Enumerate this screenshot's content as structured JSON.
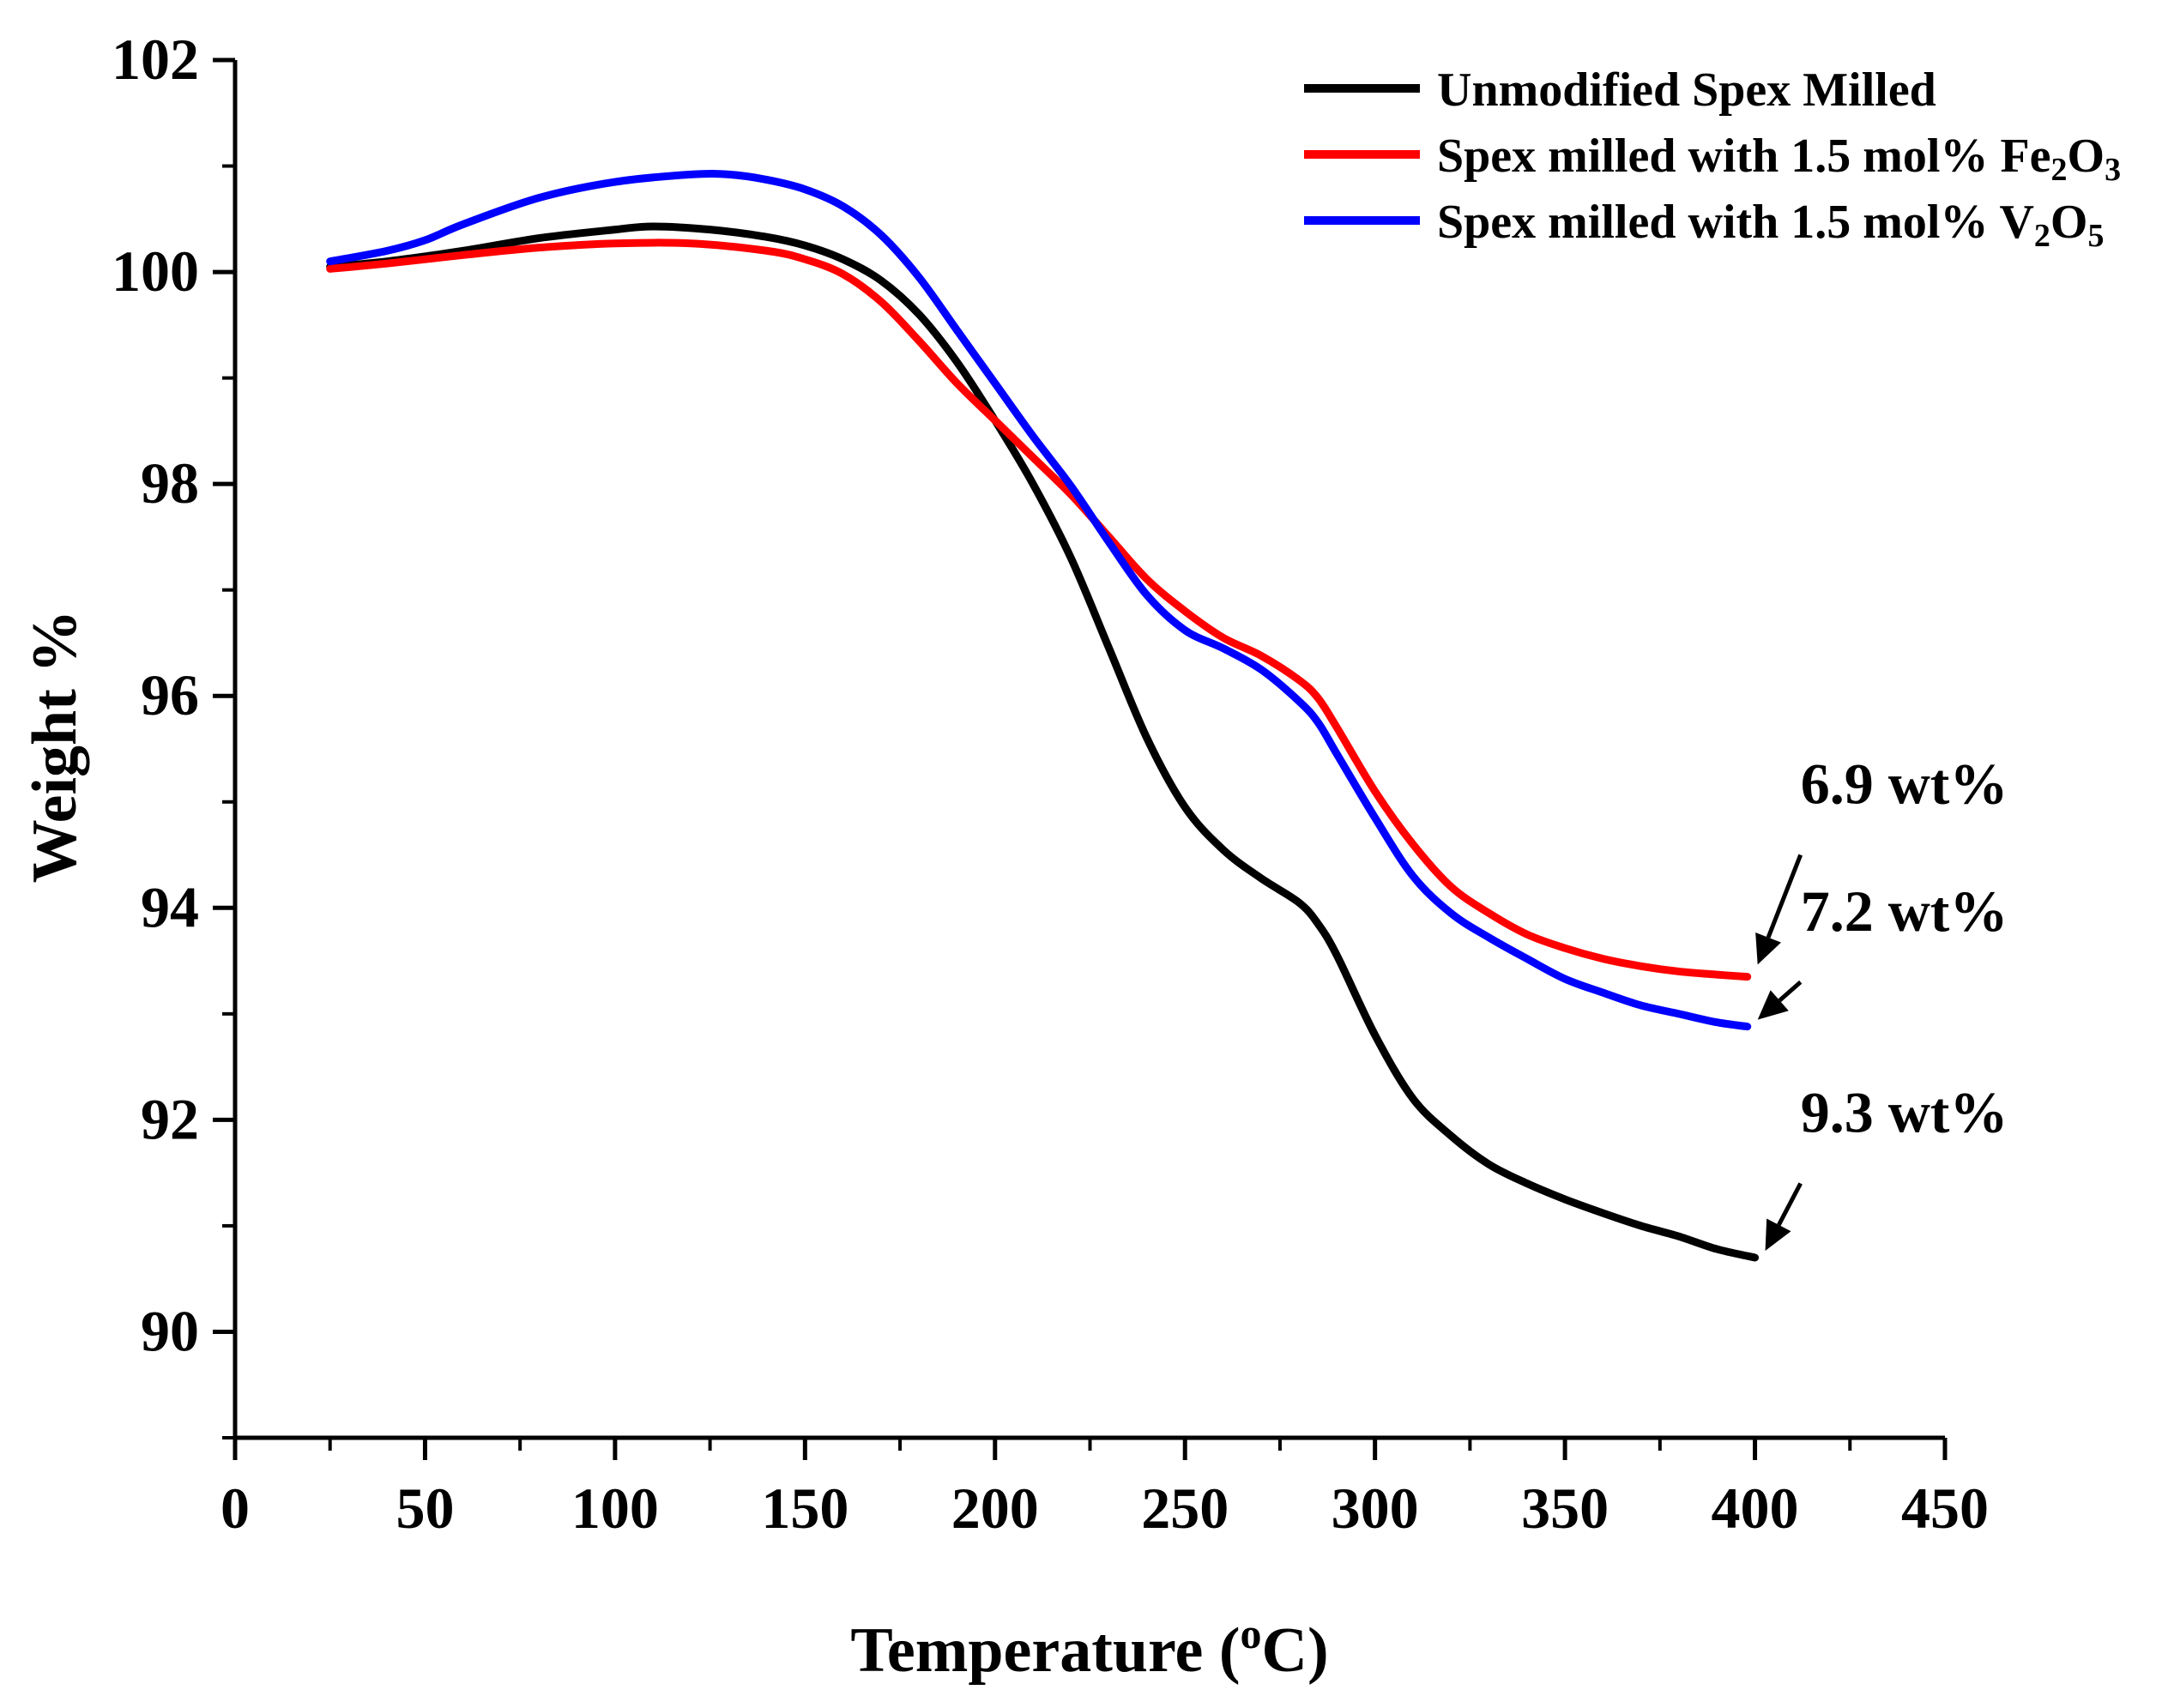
{
  "chart_data": {
    "type": "line",
    "title": "",
    "xlabel": "Temperature",
    "xlabel_unit_open": "(",
    "xlabel_unit_sup": "o",
    "xlabel_unit_close": "C)",
    "ylabel": "Weight %",
    "xlim": [
      0,
      450
    ],
    "ylim": [
      89,
      102
    ],
    "x_ticks": [
      0,
      50,
      100,
      150,
      200,
      250,
      300,
      350,
      400,
      450
    ],
    "y_ticks": [
      90,
      92,
      94,
      96,
      98,
      100,
      102
    ],
    "legend_position": "top-right",
    "series": [
      {
        "name": "Unmodified Spex Milled",
        "legend_parts": [
          {
            "t": "Unmodified Spex Milled",
            "s": "n"
          }
        ],
        "color": "#000000",
        "points": [
          [
            25,
            100.05
          ],
          [
            40,
            100.1
          ],
          [
            60,
            100.2
          ],
          [
            80,
            100.32
          ],
          [
            100,
            100.4
          ],
          [
            110,
            100.43
          ],
          [
            125,
            100.4
          ],
          [
            140,
            100.33
          ],
          [
            150,
            100.25
          ],
          [
            160,
            100.12
          ],
          [
            170,
            99.92
          ],
          [
            180,
            99.6
          ],
          [
            190,
            99.15
          ],
          [
            200,
            98.6
          ],
          [
            210,
            98.0
          ],
          [
            220,
            97.3
          ],
          [
            230,
            96.45
          ],
          [
            240,
            95.6
          ],
          [
            250,
            94.95
          ],
          [
            260,
            94.55
          ],
          [
            270,
            94.28
          ],
          [
            280,
            94.05
          ],
          [
            285,
            93.85
          ],
          [
            290,
            93.55
          ],
          [
            300,
            92.8
          ],
          [
            310,
            92.2
          ],
          [
            320,
            91.85
          ],
          [
            330,
            91.58
          ],
          [
            340,
            91.4
          ],
          [
            350,
            91.25
          ],
          [
            360,
            91.12
          ],
          [
            370,
            91.0
          ],
          [
            380,
            90.9
          ],
          [
            390,
            90.78
          ],
          [
            400,
            90.7
          ]
        ]
      },
      {
        "name": "Spex milled with 1.5 mol% Fe2O3",
        "legend_parts": [
          {
            "t": "Spex milled with 1.5 mol% Fe",
            "s": "n"
          },
          {
            "t": "2",
            "s": "sub"
          },
          {
            "t": "O",
            "s": "n"
          },
          {
            "t": "3",
            "s": "sub"
          }
        ],
        "color": "#ff0000",
        "points": [
          [
            25,
            100.03
          ],
          [
            40,
            100.08
          ],
          [
            60,
            100.16
          ],
          [
            80,
            100.23
          ],
          [
            100,
            100.27
          ],
          [
            120,
            100.27
          ],
          [
            140,
            100.2
          ],
          [
            150,
            100.12
          ],
          [
            160,
            99.98
          ],
          [
            170,
            99.72
          ],
          [
            180,
            99.35
          ],
          [
            190,
            98.95
          ],
          [
            200,
            98.6
          ],
          [
            210,
            98.25
          ],
          [
            220,
            97.9
          ],
          [
            230,
            97.5
          ],
          [
            240,
            97.1
          ],
          [
            250,
            96.8
          ],
          [
            260,
            96.55
          ],
          [
            270,
            96.38
          ],
          [
            280,
            96.15
          ],
          [
            285,
            95.98
          ],
          [
            290,
            95.7
          ],
          [
            300,
            95.1
          ],
          [
            310,
            94.6
          ],
          [
            320,
            94.2
          ],
          [
            330,
            93.95
          ],
          [
            340,
            93.75
          ],
          [
            350,
            93.62
          ],
          [
            360,
            93.52
          ],
          [
            370,
            93.45
          ],
          [
            380,
            93.4
          ],
          [
            390,
            93.37
          ],
          [
            398,
            93.35
          ]
        ]
      },
      {
        "name": "Spex milled with 1.5 mol% V2O5",
        "legend_parts": [
          {
            "t": "Spex milled with 1.5 mol% V",
            "s": "n"
          },
          {
            "t": "2",
            "s": "sub"
          },
          {
            "t": "O",
            "s": "n"
          },
          {
            "t": "5",
            "s": "sub"
          }
        ],
        "color": "#0000ff",
        "points": [
          [
            25,
            100.1
          ],
          [
            40,
            100.2
          ],
          [
            50,
            100.3
          ],
          [
            60,
            100.45
          ],
          [
            80,
            100.7
          ],
          [
            100,
            100.85
          ],
          [
            120,
            100.92
          ],
          [
            130,
            100.92
          ],
          [
            140,
            100.87
          ],
          [
            150,
            100.78
          ],
          [
            160,
            100.62
          ],
          [
            170,
            100.35
          ],
          [
            180,
            99.95
          ],
          [
            190,
            99.45
          ],
          [
            200,
            98.95
          ],
          [
            210,
            98.45
          ],
          [
            220,
            97.98
          ],
          [
            230,
            97.45
          ],
          [
            240,
            96.95
          ],
          [
            250,
            96.62
          ],
          [
            260,
            96.45
          ],
          [
            270,
            96.25
          ],
          [
            280,
            95.95
          ],
          [
            285,
            95.75
          ],
          [
            290,
            95.45
          ],
          [
            300,
            94.85
          ],
          [
            310,
            94.3
          ],
          [
            320,
            93.95
          ],
          [
            330,
            93.72
          ],
          [
            340,
            93.52
          ],
          [
            350,
            93.33
          ],
          [
            360,
            93.2
          ],
          [
            370,
            93.08
          ],
          [
            380,
            93.0
          ],
          [
            390,
            92.92
          ],
          [
            398,
            92.88
          ]
        ]
      }
    ],
    "annotations": [
      {
        "text": "6.9 wt%",
        "x": 398,
        "y": 93.4,
        "tx": 412,
        "ty": 94.5
      },
      {
        "text": "7.2 wt%",
        "x": 398,
        "y": 92.88,
        "tx": 412,
        "ty": 93.3
      },
      {
        "text": "9.3 wt%",
        "x": 400,
        "y": 90.7,
        "tx": 412,
        "ty": 91.4
      }
    ]
  }
}
